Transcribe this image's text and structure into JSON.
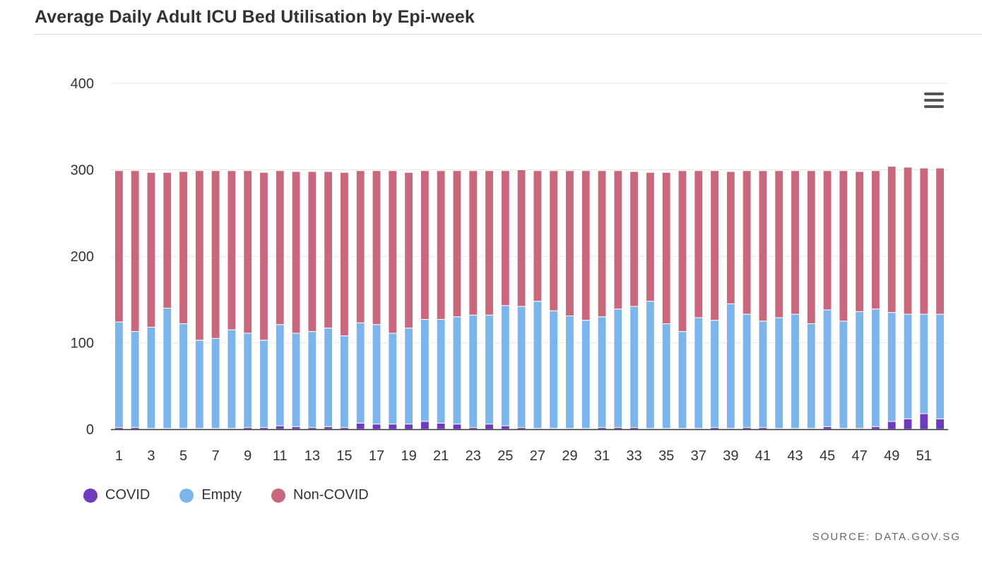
{
  "page": {
    "title": "Average Daily Adult ICU Bed Utilisation by Epi-week",
    "source": "SOURCE: DATA.GOV.SG",
    "menu_icon": "hamburger-menu-icon"
  },
  "chart_data": {
    "type": "bar",
    "stacked": true,
    "title": "Average Daily Adult ICU Bed Utilisation by Epi-week",
    "xlabel": "",
    "ylabel": "",
    "ylim": [
      0,
      400
    ],
    "yticks": [
      0,
      100,
      200,
      300,
      400
    ],
    "grid": true,
    "legend_placement": "bottom-left",
    "categories": [
      "1",
      "2",
      "3",
      "4",
      "5",
      "6",
      "7",
      "8",
      "9",
      "10",
      "11",
      "12",
      "13",
      "14",
      "15",
      "16",
      "17",
      "18",
      "19",
      "20",
      "21",
      "22",
      "23",
      "24",
      "25",
      "26",
      "27",
      "28",
      "29",
      "30",
      "31",
      "32",
      "33",
      "34",
      "35",
      "36",
      "37",
      "38",
      "39",
      "40",
      "41",
      "42",
      "43",
      "44",
      "45",
      "46",
      "47",
      "48",
      "49",
      "50",
      "51",
      "52"
    ],
    "xtick_labels": [
      "1",
      "3",
      "5",
      "7",
      "9",
      "11",
      "13",
      "15",
      "17",
      "19",
      "21",
      "23",
      "25",
      "27",
      "29",
      "31",
      "33",
      "35",
      "37",
      "39",
      "41",
      "43",
      "45",
      "47",
      "49",
      "51"
    ],
    "series": [
      {
        "name": "COVID",
        "color": "#6e3bbf",
        "values": [
          2,
          2,
          1,
          1,
          1,
          1,
          1,
          1,
          2,
          2,
          4,
          3,
          2,
          3,
          2,
          7,
          6,
          6,
          6,
          9,
          7,
          6,
          2,
          6,
          4,
          2,
          1,
          1,
          1,
          1,
          2,
          2,
          2,
          1,
          1,
          1,
          1,
          2,
          1,
          2,
          2,
          1,
          1,
          1,
          3,
          1,
          1,
          3,
          9,
          12,
          18,
          12
        ]
      },
      {
        "name": "Empty",
        "color": "#7cb5ec",
        "values": [
          122,
          111,
          117,
          139,
          121,
          102,
          104,
          114,
          109,
          101,
          117,
          108,
          111,
          114,
          106,
          116,
          115,
          105,
          111,
          118,
          120,
          124,
          130,
          126,
          139,
          140,
          147,
          136,
          130,
          125,
          128,
          137,
          140,
          147,
          121,
          112,
          128,
          124,
          144,
          131,
          123,
          128,
          132,
          121,
          135,
          124,
          135,
          136,
          126,
          121,
          115,
          121
        ]
      },
      {
        "name": "Non-COVID",
        "color": "#c9677d",
        "values": [
          175,
          186,
          179,
          157,
          176,
          196,
          194,
          184,
          188,
          194,
          178,
          187,
          185,
          181,
          189,
          176,
          178,
          188,
          180,
          172,
          172,
          169,
          167,
          167,
          156,
          158,
          151,
          162,
          168,
          173,
          169,
          160,
          156,
          149,
          175,
          186,
          170,
          173,
          153,
          166,
          174,
          170,
          166,
          177,
          161,
          174,
          162,
          160,
          169,
          170,
          169,
          169
        ]
      }
    ]
  }
}
